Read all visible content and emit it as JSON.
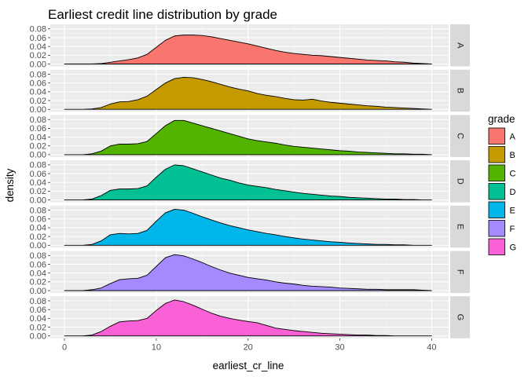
{
  "chart_data": {
    "type": "area",
    "title": "Earliest credit line distribution by grade",
    "xlabel": "earliest_cr_line",
    "ylabel": "density",
    "xlim": [
      0,
      40
    ],
    "ylim": [
      0,
      0.085
    ],
    "x_ticks": [
      0,
      10,
      20,
      30,
      40
    ],
    "y_ticks": [
      0.0,
      0.02,
      0.04,
      0.06,
      0.08
    ],
    "y_tick_labels": [
      "0.00",
      "0.02",
      "0.04",
      "0.06",
      "0.08"
    ],
    "x_tick_labels": [
      "0",
      "10",
      "20",
      "30",
      "40"
    ],
    "facet_by": "grade",
    "legend": {
      "title": "grade",
      "position": "right"
    },
    "grid": true,
    "x": [
      0,
      1,
      2,
      3,
      4,
      5,
      6,
      7,
      8,
      9,
      10,
      11,
      12,
      13,
      14,
      15,
      16,
      17,
      18,
      19,
      20,
      21,
      22,
      23,
      24,
      25,
      26,
      27,
      28,
      29,
      30,
      31,
      32,
      33,
      34,
      35,
      36,
      37,
      38,
      39,
      40
    ],
    "series": [
      {
        "name": "A",
        "color": "#F8766D",
        "values": [
          0,
          0,
          0,
          0,
          0.001,
          0.004,
          0.007,
          0.01,
          0.014,
          0.022,
          0.038,
          0.054,
          0.064,
          0.066,
          0.066,
          0.065,
          0.062,
          0.058,
          0.054,
          0.05,
          0.046,
          0.041,
          0.036,
          0.031,
          0.027,
          0.024,
          0.022,
          0.02,
          0.019,
          0.017,
          0.015,
          0.013,
          0.011,
          0.009,
          0.008,
          0.007,
          0.005,
          0.004,
          0.002,
          0.001,
          0
        ]
      },
      {
        "name": "B",
        "color": "#C49A00",
        "values": [
          0,
          0,
          0,
          0.001,
          0.004,
          0.012,
          0.017,
          0.018,
          0.022,
          0.03,
          0.045,
          0.06,
          0.07,
          0.073,
          0.072,
          0.068,
          0.063,
          0.057,
          0.051,
          0.046,
          0.042,
          0.036,
          0.032,
          0.029,
          0.025,
          0.022,
          0.021,
          0.023,
          0.019,
          0.016,
          0.014,
          0.012,
          0.01,
          0.008,
          0.007,
          0.005,
          0.004,
          0.003,
          0.002,
          0.001,
          0
        ]
      },
      {
        "name": "C",
        "color": "#53B400",
        "values": [
          0,
          0,
          0,
          0.002,
          0.008,
          0.02,
          0.024,
          0.024,
          0.025,
          0.03,
          0.048,
          0.066,
          0.078,
          0.078,
          0.072,
          0.066,
          0.06,
          0.054,
          0.048,
          0.042,
          0.036,
          0.032,
          0.029,
          0.026,
          0.022,
          0.019,
          0.017,
          0.015,
          0.013,
          0.011,
          0.009,
          0.008,
          0.006,
          0.005,
          0.004,
          0.003,
          0.002,
          0.002,
          0.001,
          0.001,
          0
        ]
      },
      {
        "name": "D",
        "color": "#00C094",
        "values": [
          0,
          0,
          0,
          0.002,
          0.01,
          0.022,
          0.025,
          0.025,
          0.026,
          0.032,
          0.052,
          0.07,
          0.08,
          0.078,
          0.071,
          0.064,
          0.057,
          0.05,
          0.045,
          0.039,
          0.034,
          0.031,
          0.028,
          0.024,
          0.021,
          0.018,
          0.015,
          0.013,
          0.011,
          0.009,
          0.008,
          0.006,
          0.005,
          0.004,
          0.003,
          0.002,
          0.002,
          0.001,
          0.001,
          0,
          0
        ]
      },
      {
        "name": "E",
        "color": "#00B6EB",
        "values": [
          0,
          0,
          0,
          0.002,
          0.01,
          0.024,
          0.027,
          0.026,
          0.027,
          0.034,
          0.055,
          0.074,
          0.082,
          0.08,
          0.073,
          0.065,
          0.058,
          0.051,
          0.045,
          0.04,
          0.035,
          0.031,
          0.027,
          0.024,
          0.02,
          0.017,
          0.014,
          0.012,
          0.01,
          0.008,
          0.007,
          0.005,
          0.004,
          0.003,
          0.002,
          0.002,
          0.001,
          0.001,
          0,
          0,
          0
        ]
      },
      {
        "name": "F",
        "color": "#A58AFF",
        "values": [
          0,
          0,
          0,
          0.002,
          0.006,
          0.016,
          0.025,
          0.027,
          0.028,
          0.035,
          0.055,
          0.075,
          0.082,
          0.079,
          0.072,
          0.064,
          0.055,
          0.047,
          0.04,
          0.035,
          0.03,
          0.027,
          0.024,
          0.02,
          0.017,
          0.015,
          0.012,
          0.01,
          0.009,
          0.008,
          0.006,
          0.005,
          0.004,
          0.003,
          0.003,
          0.002,
          0.002,
          0.002,
          0.002,
          0.001,
          0
        ]
      },
      {
        "name": "G",
        "color": "#FB61D7",
        "values": [
          0,
          0,
          0,
          0.002,
          0.01,
          0.022,
          0.032,
          0.034,
          0.035,
          0.04,
          0.058,
          0.074,
          0.082,
          0.078,
          0.07,
          0.061,
          0.052,
          0.045,
          0.04,
          0.036,
          0.033,
          0.03,
          0.024,
          0.018,
          0.015,
          0.012,
          0.01,
          0.008,
          0.006,
          0.005,
          0.004,
          0.003,
          0.002,
          0.002,
          0.001,
          0.001,
          0,
          0,
          0,
          0,
          0
        ]
      }
    ]
  }
}
